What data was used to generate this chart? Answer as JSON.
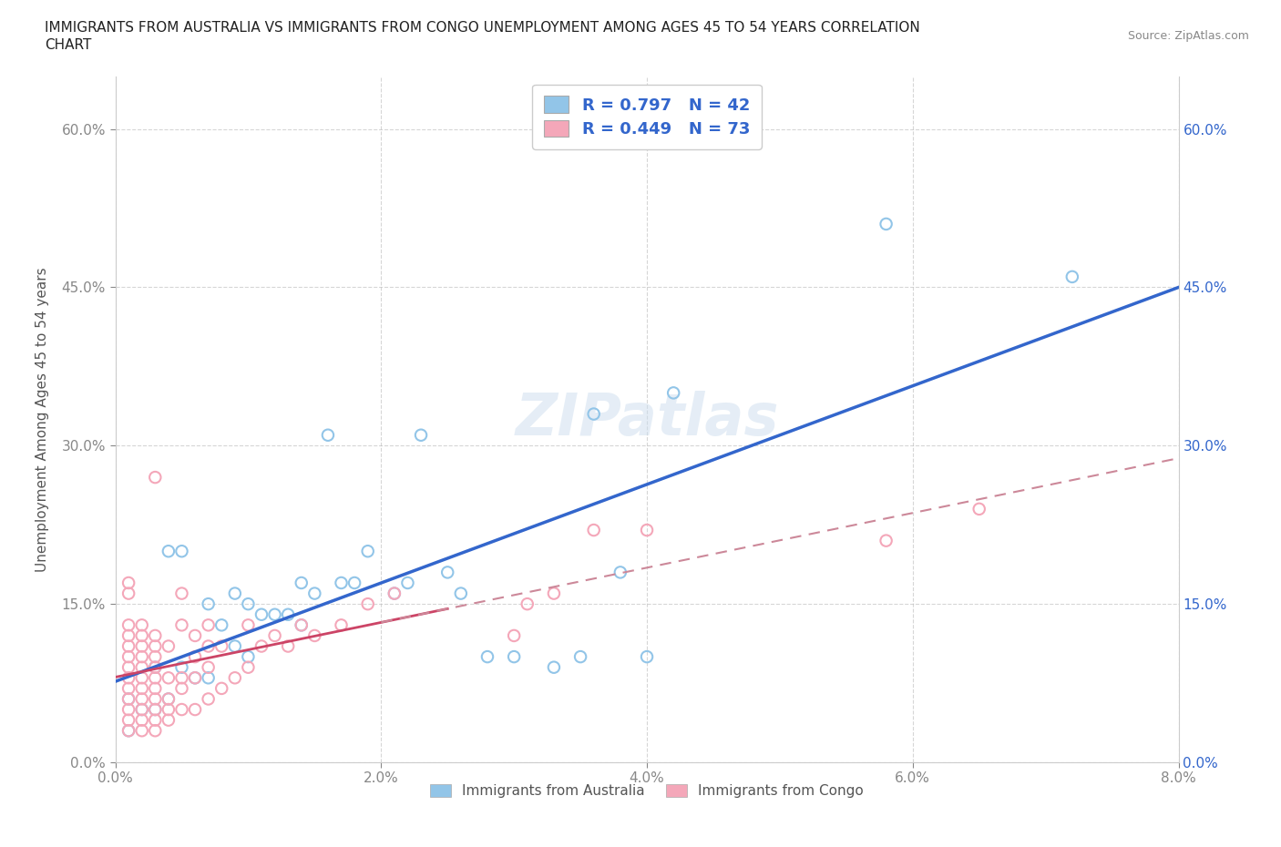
{
  "title_line1": "IMMIGRANTS FROM AUSTRALIA VS IMMIGRANTS FROM CONGO UNEMPLOYMENT AMONG AGES 45 TO 54 YEARS CORRELATION",
  "title_line2": "CHART",
  "source_text": "Source: ZipAtlas.com",
  "ylabel": "Unemployment Among Ages 45 to 54 years",
  "xlim": [
    0.0,
    0.08
  ],
  "ylim": [
    0.0,
    0.65
  ],
  "xticks": [
    0.0,
    0.02,
    0.04,
    0.06,
    0.08
  ],
  "yticks": [
    0.0,
    0.15,
    0.3,
    0.45,
    0.6
  ],
  "xticklabels": [
    "0.0%",
    "2.0%",
    "4.0%",
    "6.0%",
    "8.0%"
  ],
  "yticklabels": [
    "0.0%",
    "15.0%",
    "30.0%",
    "45.0%",
    "60.0%"
  ],
  "australia_color": "#92C5E8",
  "congo_color": "#F4A7B9",
  "trend_australia_color": "#3366CC",
  "trend_congo_color": "#CC4466",
  "trend_congo_dash_color": "#CC8899",
  "R_australia": 0.797,
  "N_australia": 42,
  "R_congo": 0.449,
  "N_congo": 73,
  "legend_text_color": "#3366CC",
  "background_color": "#ffffff",
  "grid_color": "#bbbbbb",
  "watermark_text": "ZIPatlas",
  "australia_x": [
    0.001,
    0.001,
    0.002,
    0.003,
    0.003,
    0.004,
    0.004,
    0.005,
    0.005,
    0.006,
    0.007,
    0.007,
    0.008,
    0.009,
    0.009,
    0.01,
    0.01,
    0.011,
    0.012,
    0.013,
    0.014,
    0.014,
    0.015,
    0.016,
    0.017,
    0.018,
    0.019,
    0.021,
    0.022,
    0.023,
    0.025,
    0.026,
    0.028,
    0.03,
    0.033,
    0.035,
    0.036,
    0.038,
    0.04,
    0.042,
    0.058,
    0.072
  ],
  "australia_y": [
    0.03,
    0.06,
    0.05,
    0.05,
    0.09,
    0.06,
    0.2,
    0.09,
    0.2,
    0.08,
    0.08,
    0.15,
    0.13,
    0.11,
    0.16,
    0.1,
    0.15,
    0.14,
    0.14,
    0.14,
    0.13,
    0.17,
    0.16,
    0.31,
    0.17,
    0.17,
    0.2,
    0.16,
    0.17,
    0.31,
    0.18,
    0.16,
    0.1,
    0.1,
    0.09,
    0.1,
    0.33,
    0.18,
    0.1,
    0.35,
    0.51,
    0.46
  ],
  "congo_x": [
    0.001,
    0.001,
    0.001,
    0.001,
    0.001,
    0.001,
    0.001,
    0.001,
    0.001,
    0.001,
    0.001,
    0.001,
    0.001,
    0.002,
    0.002,
    0.002,
    0.002,
    0.002,
    0.002,
    0.002,
    0.002,
    0.002,
    0.002,
    0.002,
    0.003,
    0.003,
    0.003,
    0.003,
    0.003,
    0.003,
    0.003,
    0.003,
    0.003,
    0.003,
    0.003,
    0.004,
    0.004,
    0.004,
    0.004,
    0.004,
    0.005,
    0.005,
    0.005,
    0.005,
    0.005,
    0.006,
    0.006,
    0.006,
    0.006,
    0.007,
    0.007,
    0.007,
    0.007,
    0.008,
    0.008,
    0.009,
    0.01,
    0.01,
    0.011,
    0.012,
    0.013,
    0.014,
    0.015,
    0.017,
    0.019,
    0.021,
    0.03,
    0.031,
    0.033,
    0.036,
    0.04,
    0.058,
    0.065
  ],
  "congo_y": [
    0.03,
    0.04,
    0.05,
    0.06,
    0.07,
    0.08,
    0.09,
    0.1,
    0.11,
    0.12,
    0.13,
    0.16,
    0.17,
    0.03,
    0.04,
    0.05,
    0.06,
    0.07,
    0.08,
    0.09,
    0.1,
    0.11,
    0.12,
    0.13,
    0.03,
    0.04,
    0.05,
    0.06,
    0.07,
    0.08,
    0.09,
    0.1,
    0.11,
    0.12,
    0.27,
    0.04,
    0.05,
    0.06,
    0.08,
    0.11,
    0.05,
    0.07,
    0.08,
    0.13,
    0.16,
    0.05,
    0.08,
    0.1,
    0.12,
    0.06,
    0.09,
    0.11,
    0.13,
    0.07,
    0.11,
    0.08,
    0.09,
    0.13,
    0.11,
    0.12,
    0.11,
    0.13,
    0.12,
    0.13,
    0.15,
    0.16,
    0.12,
    0.15,
    0.16,
    0.22,
    0.22,
    0.21,
    0.24
  ]
}
